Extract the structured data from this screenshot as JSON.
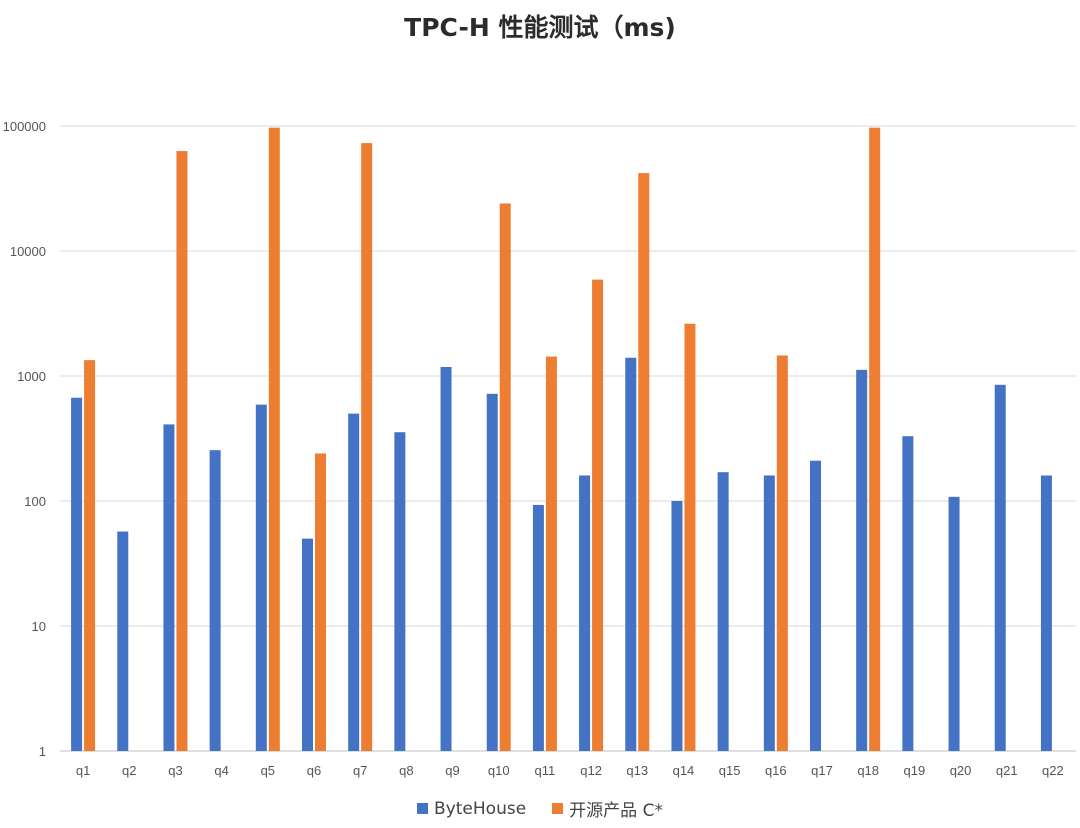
{
  "chart_data": {
    "type": "bar",
    "title": "TPC-H 性能测试（ms)",
    "y_scale": "log",
    "ylim": [
      1,
      100000
    ],
    "y_ticks": [
      "1",
      "10",
      "100",
      "1000",
      "10000",
      "100000"
    ],
    "grid": true,
    "legend_position": "bottom",
    "categories": [
      "q1",
      "q2",
      "q3",
      "q4",
      "q5",
      "q6",
      "q7",
      "q8",
      "q9",
      "q10",
      "q11",
      "q12",
      "q13",
      "q14",
      "q15",
      "q16",
      "q17",
      "q18",
      "q19",
      "q20",
      "q21",
      "q22"
    ],
    "series": [
      {
        "name": "ByteHouse",
        "color": "#4472c4",
        "values": [
          670,
          57,
          410,
          255,
          590,
          50,
          500,
          355,
          1180,
          720,
          93,
          160,
          1400,
          100,
          170,
          160,
          210,
          1120,
          330,
          108,
          850,
          160
        ]
      },
      {
        "name": "开源产品 C*",
        "color": "#ed7d31",
        "values": [
          1340,
          null,
          63000,
          null,
          97000,
          240,
          73000,
          null,
          null,
          24000,
          1430,
          5900,
          42000,
          2620,
          null,
          1460,
          null,
          97000,
          null,
          null,
          null,
          null
        ]
      }
    ]
  }
}
